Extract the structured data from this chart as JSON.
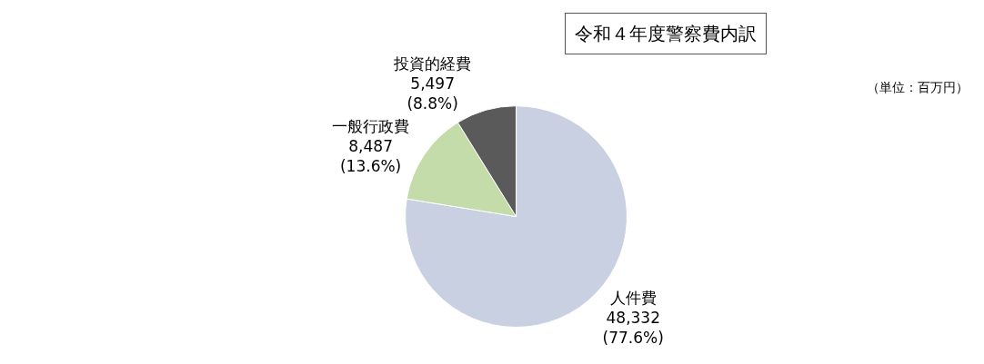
{
  "chart_data": {
    "type": "pie",
    "title": "令和４年度警察費内訳",
    "categories": [
      "人件費",
      "一般行政費",
      "投資的経費"
    ],
    "values": [
      48332,
      8487,
      5497
    ],
    "value_labels": [
      "48,332\n(77.6%)",
      "8,487\n(13.6%)",
      "5,497\n(8.8%)"
    ],
    "colors": [
      "#c8d0e2",
      "#c4dcaa",
      "#5a5a5a"
    ],
    "annotations": [
      "（単位：百万円）"
    ],
    "legend": false
  }
}
